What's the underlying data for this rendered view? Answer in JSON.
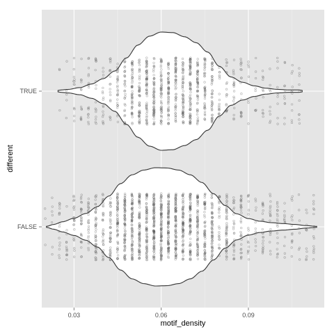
{
  "chart_data": {
    "type": "violin",
    "xlabel": "motif_density",
    "ylabel": "different",
    "xlim": [
      0.0189,
      0.1161
    ],
    "x_ticks": [
      0.03,
      0.06,
      0.09
    ],
    "x_tick_labels": [
      "0.03",
      "0.06",
      "0.09"
    ],
    "categories": [
      "TRUE",
      "FALSE"
    ],
    "grid": true,
    "colors": {
      "panel": "#e5e5e5",
      "grid_major": "#ffffff",
      "grid_minor": "#f2f2f2",
      "violin_fill": "#ffffff",
      "violin_stroke": "#333333",
      "point": "#555555"
    },
    "series": [
      {
        "category": "TRUE",
        "range": [
          0.0245,
          0.1085
        ],
        "point_count": 1000,
        "density_profile": [
          [
            0.0245,
            0.012
          ],
          [
            0.0255,
            0.02
          ],
          [
            0.028,
            0.03
          ],
          [
            0.032,
            0.06
          ],
          [
            0.036,
            0.12
          ],
          [
            0.04,
            0.21
          ],
          [
            0.044,
            0.34
          ],
          [
            0.048,
            0.56
          ],
          [
            0.052,
            0.78
          ],
          [
            0.056,
            0.93
          ],
          [
            0.06,
            1.0
          ],
          [
            0.064,
            0.99
          ],
          [
            0.068,
            0.92
          ],
          [
            0.072,
            0.82
          ],
          [
            0.076,
            0.66
          ],
          [
            0.08,
            0.42
          ],
          [
            0.084,
            0.24
          ],
          [
            0.088,
            0.15
          ],
          [
            0.092,
            0.09
          ],
          [
            0.096,
            0.05
          ],
          [
            0.1,
            0.03
          ],
          [
            0.104,
            0.02
          ],
          [
            0.1075,
            0.02
          ],
          [
            0.1085,
            0.012
          ]
        ]
      },
      {
        "category": "FALSE",
        "range": [
          0.0205,
          0.1135
        ],
        "point_count": 1600,
        "density_profile": [
          [
            0.0205,
            0.008
          ],
          [
            0.023,
            0.04
          ],
          [
            0.026,
            0.085
          ],
          [
            0.03,
            0.145
          ],
          [
            0.034,
            0.225
          ],
          [
            0.038,
            0.34
          ],
          [
            0.042,
            0.52
          ],
          [
            0.046,
            0.73
          ],
          [
            0.05,
            0.88
          ],
          [
            0.054,
            0.96
          ],
          [
            0.058,
            1.0
          ],
          [
            0.062,
            0.995
          ],
          [
            0.066,
            0.96
          ],
          [
            0.07,
            0.88
          ],
          [
            0.074,
            0.75
          ],
          [
            0.078,
            0.56
          ],
          [
            0.082,
            0.36
          ],
          [
            0.086,
            0.22
          ],
          [
            0.09,
            0.14
          ],
          [
            0.094,
            0.095
          ],
          [
            0.098,
            0.07
          ],
          [
            0.102,
            0.055
          ],
          [
            0.106,
            0.04
          ],
          [
            0.11,
            0.02
          ],
          [
            0.1135,
            0.008
          ]
        ]
      }
    ]
  }
}
